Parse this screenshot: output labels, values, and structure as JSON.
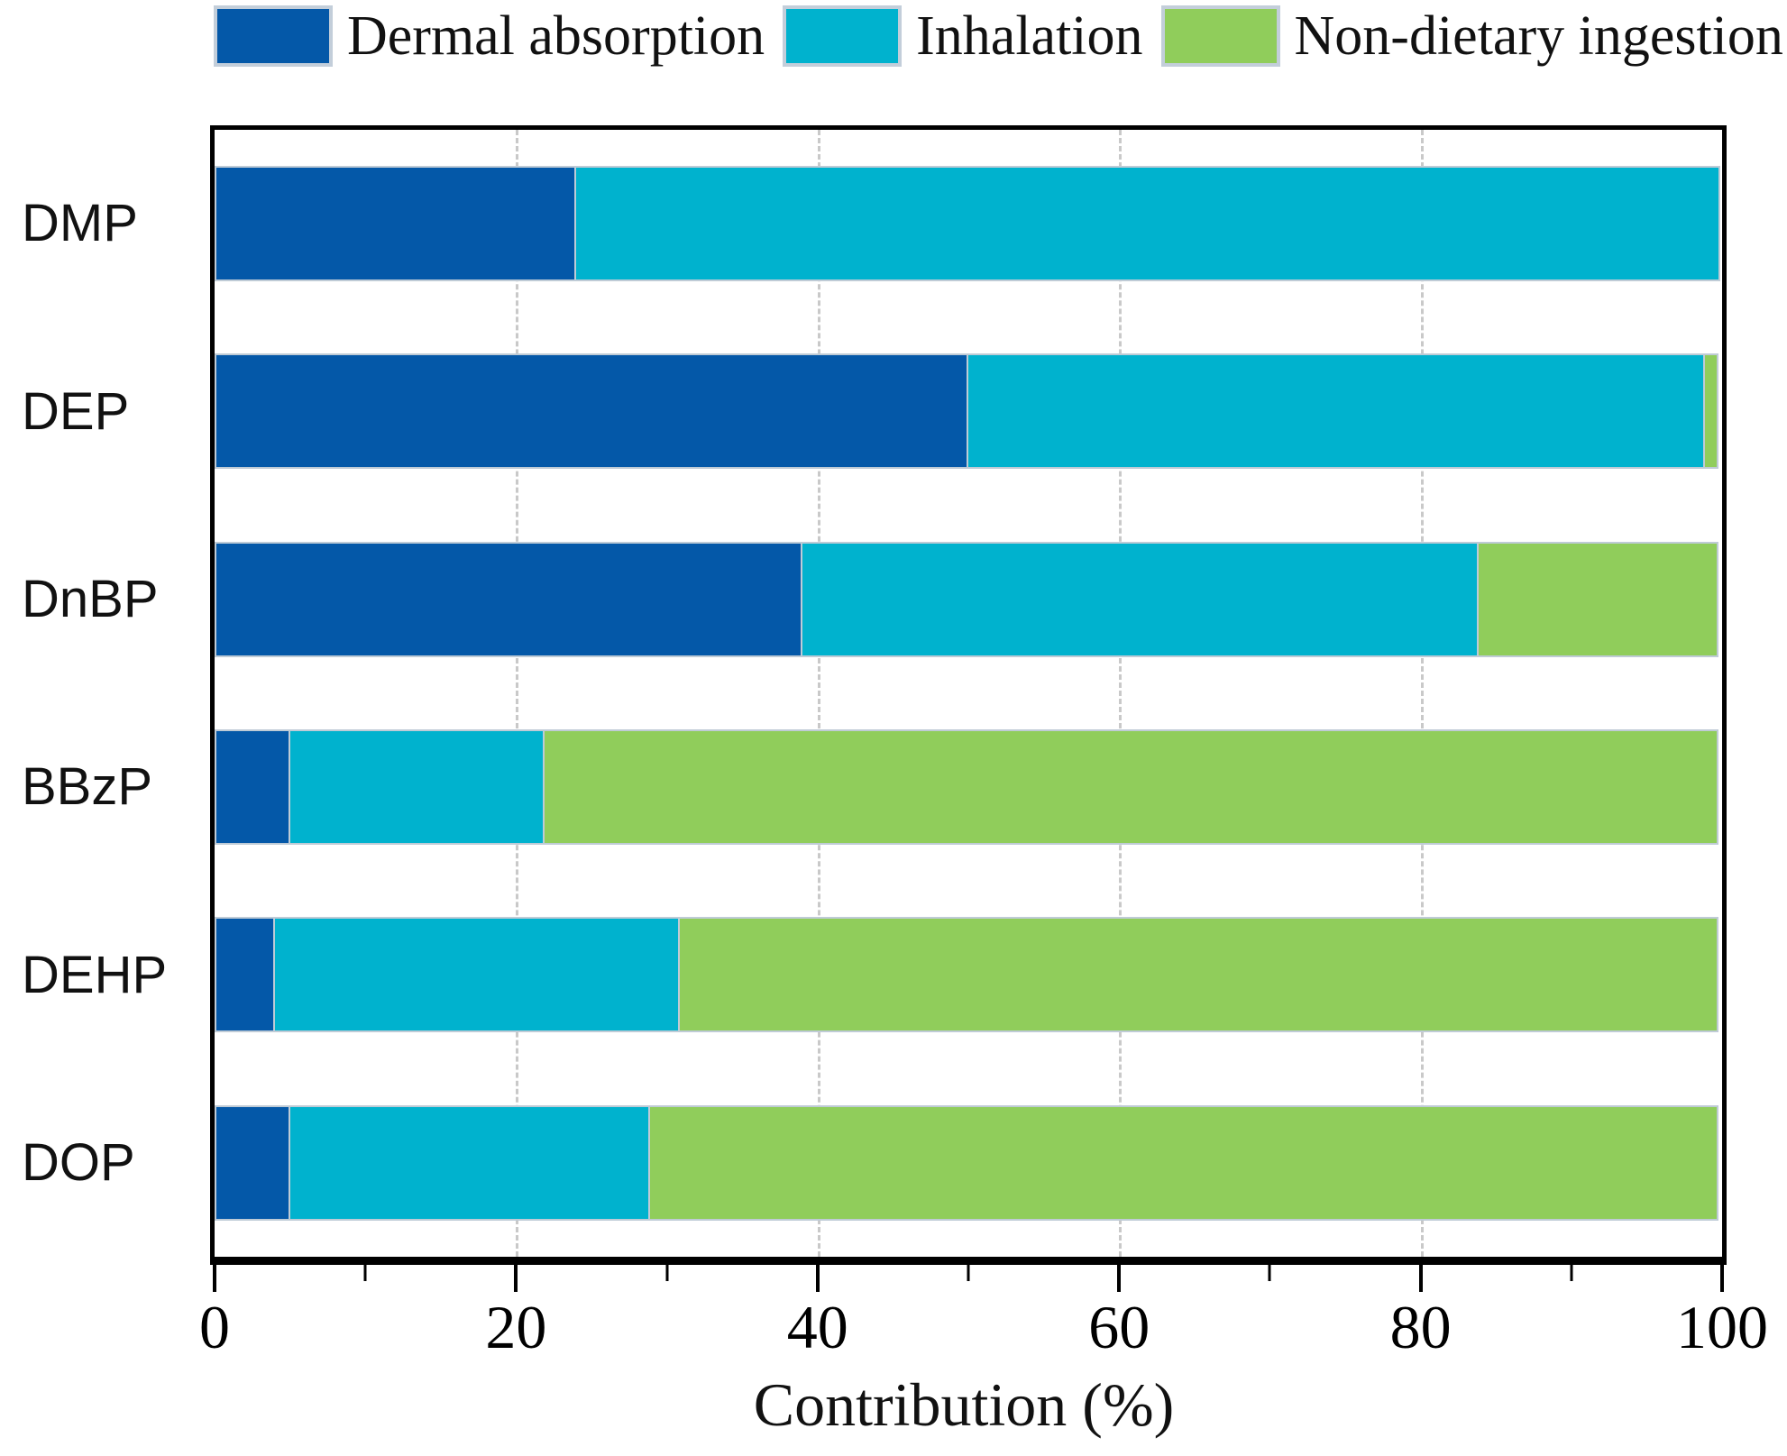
{
  "chart_data": {
    "type": "bar",
    "orientation": "horizontal",
    "stacked": true,
    "title": "",
    "xlabel": "Contribution (%)",
    "ylabel": "",
    "xlim": [
      0,
      100
    ],
    "x_ticks_major": [
      0,
      20,
      40,
      60,
      80,
      100
    ],
    "x_ticks_minor": [
      10,
      30,
      50,
      70,
      90
    ],
    "gridlines_at": [
      20,
      40,
      60,
      80
    ],
    "grid": "dashed-vertical",
    "legend_position": "top",
    "categories": [
      "DMP",
      "DEP",
      "DnBP",
      "BBzP",
      "DEHP",
      "DOP"
    ],
    "series": [
      {
        "name": "Dermal absorption",
        "color": "#0458A8",
        "values": [
          24,
          50,
          39,
          5,
          4,
          5
        ]
      },
      {
        "name": "Inhalation",
        "color": "#00B2CE",
        "values": [
          76,
          49,
          45,
          17,
          27,
          24
        ]
      },
      {
        "name": "Non-dietary ingestion",
        "color": "#90CD5B",
        "values": [
          0,
          1,
          16,
          78,
          69,
          71
        ]
      }
    ]
  },
  "colors": {
    "bar_border": "#bfcbd6",
    "legend_swatch_border": "#c3ceda",
    "gridline": "#c9c9c9",
    "axis": "#000000",
    "background": "#ffffff"
  }
}
